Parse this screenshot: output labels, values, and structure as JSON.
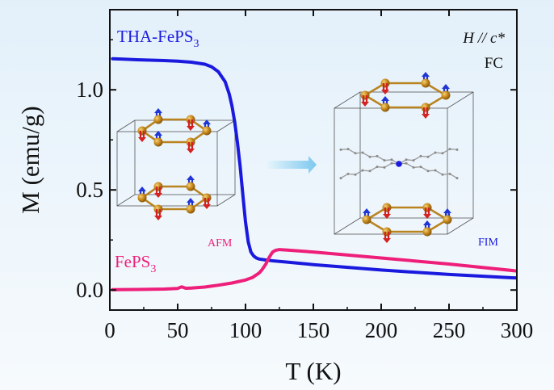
{
  "chart_data": {
    "type": "line",
    "xlabel": "T (K)",
    "ylabel": "M (emu/g)",
    "xlim": [
      0,
      300
    ],
    "ylim": [
      -0.1,
      1.4
    ],
    "xticks": [
      0,
      50,
      100,
      150,
      200,
      250,
      300
    ],
    "yticks": [
      0.0,
      0.5,
      1.0
    ],
    "ytick_labels": [
      "0.0",
      "0.5",
      "1.0"
    ],
    "grid": false,
    "series": [
      {
        "name": "THA-FePS3",
        "color": "#1a1adf",
        "x": [
          2,
          10,
          20,
          30,
          40,
          50,
          60,
          70,
          75,
          80,
          85,
          88,
          90,
          92,
          94,
          96,
          98,
          100,
          102,
          104,
          106,
          108,
          110,
          115,
          120,
          130,
          150,
          200,
          250,
          300
        ],
        "y": [
          1.155,
          1.153,
          1.15,
          1.148,
          1.146,
          1.143,
          1.138,
          1.128,
          1.115,
          1.09,
          1.04,
          0.98,
          0.92,
          0.84,
          0.74,
          0.62,
          0.48,
          0.34,
          0.24,
          0.19,
          0.17,
          0.16,
          0.155,
          0.15,
          0.146,
          0.14,
          0.127,
          0.1,
          0.078,
          0.06
        ]
      },
      {
        "name": "FePS3",
        "color": "#ee1f7a",
        "x": [
          2,
          20,
          40,
          50,
          53,
          56,
          60,
          70,
          80,
          90,
          100,
          105,
          110,
          112,
          115,
          117,
          119,
          120,
          122,
          125,
          130,
          150,
          200,
          250,
          300
        ],
        "y": [
          0.002,
          0.003,
          0.005,
          0.008,
          0.016,
          0.009,
          0.01,
          0.015,
          0.024,
          0.035,
          0.05,
          0.062,
          0.085,
          0.1,
          0.13,
          0.158,
          0.18,
          0.19,
          0.198,
          0.202,
          0.2,
          0.19,
          0.16,
          0.13,
          0.095
        ]
      }
    ],
    "annotations": {
      "field_condition_label": "H // c*",
      "cooling_label": "FC",
      "afm_label": "AFM",
      "fim_label": "FIM"
    }
  },
  "colors": {
    "background_top": "#e3f0fa",
    "axis": "#111111",
    "thafeps3": "#1a1adf",
    "feps3": "#ee1f7a",
    "arrow": "#8fd0f2",
    "fe_atom": "#c98a1c",
    "spin_up": "#1f35d6",
    "spin_down": "#d42222"
  }
}
